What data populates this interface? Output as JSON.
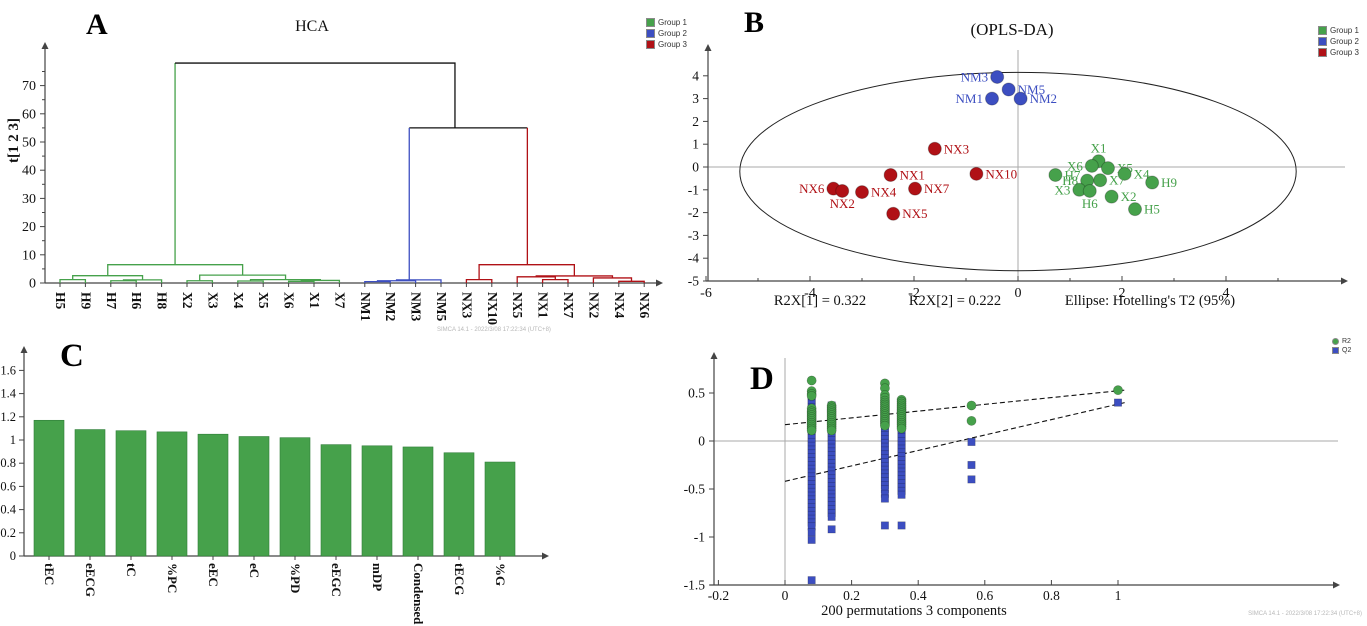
{
  "colors": {
    "green": "#46a14b",
    "blue": "#3c4ec1",
    "red": "#b01116",
    "black": "#111111",
    "axis": "#444444",
    "grid": "#aaaaaa",
    "text": "#111111"
  },
  "watermark_a": "SIMCA 14.1 - 2022/3/08 17:22:34 (UTC+8)",
  "watermark_d": "SIMCA 14.1 - 2022/3/08 17:22:34 (UTC+8)",
  "chart_data": [
    {
      "id": "A",
      "type": "dendrogram",
      "panel_label": "A",
      "title": "HCA",
      "ylabel": "t[1 2 3]",
      "yticks": [
        0,
        10,
        20,
        30,
        40,
        50,
        60,
        70
      ],
      "ylim": [
        0,
        80
      ],
      "leaves": [
        "H5",
        "H9",
        "H7",
        "H6",
        "H8",
        "X2",
        "X3",
        "X4",
        "X5",
        "X6",
        "X1",
        "X7",
        "NM1",
        "NM2",
        "NM3",
        "NM5",
        "NX3",
        "NX10",
        "NX5",
        "NX1",
        "NX7",
        "NX2",
        "NX4",
        "NX6"
      ],
      "legend": [
        {
          "label": "Group 1",
          "color_key": "green"
        },
        {
          "label": "Group 2",
          "color_key": "blue"
        },
        {
          "label": "Group 3",
          "color_key": "red"
        }
      ],
      "segments": [
        {
          "c": "green",
          "pts": [
            [
              1,
              0
            ],
            [
              1,
              1.2
            ],
            [
              2,
              1.2
            ],
            [
              2,
              0
            ]
          ]
        },
        {
          "c": "green",
          "pts": [
            [
              3,
              0
            ],
            [
              3,
              0.8
            ],
            [
              4,
              0.8
            ],
            [
              4,
              0
            ]
          ]
        },
        {
          "c": "green",
          "pts": [
            [
              3.5,
              0.8
            ],
            [
              3.5,
              1.1
            ],
            [
              5,
              1.1
            ],
            [
              5,
              0
            ]
          ]
        },
        {
          "c": "green",
          "pts": [
            [
              1.5,
              1.2
            ],
            [
              1.5,
              2.6
            ],
            [
              4.25,
              2.6
            ],
            [
              4.25,
              1.1
            ]
          ]
        },
        {
          "c": "green",
          "pts": [
            [
              6,
              0
            ],
            [
              6,
              0.8
            ],
            [
              7,
              0.8
            ],
            [
              7,
              0
            ]
          ]
        },
        {
          "c": "green",
          "pts": [
            [
              8,
              0
            ],
            [
              8,
              0.7
            ],
            [
              9,
              0.7
            ],
            [
              9,
              0
            ]
          ]
        },
        {
          "c": "green",
          "pts": [
            [
              10,
              0
            ],
            [
              10,
              0.6
            ],
            [
              11,
              0.6
            ],
            [
              11,
              0
            ]
          ]
        },
        {
          "c": "green",
          "pts": [
            [
              10.5,
              0.6
            ],
            [
              10.5,
              0.9
            ],
            [
              12,
              0.9
            ],
            [
              12,
              0
            ]
          ]
        },
        {
          "c": "green",
          "pts": [
            [
              8.5,
              0.7
            ],
            [
              8.5,
              1.2
            ],
            [
              11.25,
              1.2
            ],
            [
              11.25,
              0.9
            ]
          ]
        },
        {
          "c": "green",
          "pts": [
            [
              6.5,
              0.8
            ],
            [
              6.5,
              2.8
            ],
            [
              9.88,
              2.8
            ],
            [
              9.88,
              1.2
            ]
          ]
        },
        {
          "c": "green",
          "pts": [
            [
              2.88,
              2.6
            ],
            [
              2.88,
              6.5
            ],
            [
              8.19,
              6.5
            ],
            [
              8.19,
              2.8
            ]
          ]
        },
        {
          "c": "green",
          "pts": [
            [
              5.53,
              6.5
            ],
            [
              5.53,
              78
            ]
          ]
        },
        {
          "c": "black",
          "pts": [
            [
              5.53,
              78
            ],
            [
              16.55,
              78
            ],
            [
              16.55,
              55
            ]
          ]
        },
        {
          "c": "black",
          "pts": [
            [
              14.75,
              55
            ],
            [
              19.4,
              55
            ]
          ]
        },
        {
          "c": "blue",
          "pts": [
            [
              13,
              0
            ],
            [
              13,
              0.5
            ],
            [
              14,
              0.5
            ],
            [
              14,
              0
            ]
          ]
        },
        {
          "c": "blue",
          "pts": [
            [
              13.5,
              0.5
            ],
            [
              13.5,
              0.8
            ],
            [
              15,
              0.8
            ],
            [
              15,
              0
            ]
          ]
        },
        {
          "c": "blue",
          "pts": [
            [
              14.25,
              0.8
            ],
            [
              14.25,
              1.1
            ],
            [
              16,
              1.1
            ],
            [
              16,
              0
            ]
          ]
        },
        {
          "c": "blue",
          "pts": [
            [
              14.75,
              1.1
            ],
            [
              14.75,
              55
            ]
          ]
        },
        {
          "c": "red",
          "pts": [
            [
              17,
              0
            ],
            [
              17,
              1.2
            ],
            [
              18,
              1.2
            ],
            [
              18,
              0
            ]
          ]
        },
        {
          "c": "red",
          "pts": [
            [
              20,
              0
            ],
            [
              20,
              1.2
            ],
            [
              21,
              1.2
            ],
            [
              21,
              0
            ]
          ]
        },
        {
          "c": "red",
          "pts": [
            [
              19,
              0
            ],
            [
              19,
              2.2
            ],
            [
              20.5,
              2.2
            ],
            [
              20.5,
              1.2
            ]
          ]
        },
        {
          "c": "red",
          "pts": [
            [
              23,
              0
            ],
            [
              23,
              0.6
            ],
            [
              24,
              0.6
            ],
            [
              24,
              0
            ]
          ]
        },
        {
          "c": "red",
          "pts": [
            [
              22,
              0
            ],
            [
              22,
              1.8
            ],
            [
              23.5,
              1.8
            ],
            [
              23.5,
              0.6
            ]
          ]
        },
        {
          "c": "red",
          "pts": [
            [
              19.75,
              2.2
            ],
            [
              19.75,
              2.5
            ],
            [
              22.75,
              2.5
            ],
            [
              22.75,
              1.8
            ]
          ]
        },
        {
          "c": "red",
          "pts": [
            [
              17.5,
              1.2
            ],
            [
              17.5,
              6.5
            ],
            [
              21.25,
              6.5
            ],
            [
              21.25,
              2.5
            ]
          ]
        },
        {
          "c": "red",
          "pts": [
            [
              19.4,
              6.5
            ],
            [
              19.4,
              55
            ]
          ]
        }
      ]
    },
    {
      "id": "B",
      "type": "scatter",
      "panel_label": "B",
      "title": "(OPLS-DA)",
      "xticks": [
        -6,
        -4,
        -2,
        0,
        2,
        4
      ],
      "yticks": [
        -5,
        -4,
        -3,
        -2,
        -1,
        0,
        1,
        2,
        3,
        4
      ],
      "xlim": [
        -6,
        5.6
      ],
      "ylim": [
        -5,
        4.7
      ],
      "captions": [
        "R2X[1] = 0.322",
        "R2X[2] = 0.222",
        "Ellipse: Hotelling's T2 (95%)"
      ],
      "ellipse": {
        "cx": 0,
        "cy": -0.2,
        "rx": 5.35,
        "ry": 4.35
      },
      "legend": [
        {
          "label": "Group 1",
          "color_key": "green"
        },
        {
          "label": "Group 2",
          "color_key": "blue"
        },
        {
          "label": "Group 3",
          "color_key": "red"
        }
      ],
      "points": [
        {
          "label": "NM3",
          "x": -0.4,
          "y": 3.95,
          "g": "blue",
          "side": "l"
        },
        {
          "label": "NM5",
          "x": -0.18,
          "y": 3.4,
          "g": "blue",
          "side": "r"
        },
        {
          "label": "NM1",
          "x": -0.5,
          "y": 3.0,
          "g": "blue",
          "side": "l"
        },
        {
          "label": "NM2",
          "x": 0.05,
          "y": 3.0,
          "g": "blue",
          "side": "r"
        },
        {
          "label": "NX3",
          "x": -1.6,
          "y": 0.8,
          "g": "red",
          "side": "r"
        },
        {
          "label": "NX1",
          "x": -2.45,
          "y": -0.35,
          "g": "red",
          "side": "r"
        },
        {
          "label": "NX10",
          "x": -0.8,
          "y": -0.3,
          "g": "red",
          "side": "r"
        },
        {
          "label": "NX6",
          "x": -3.55,
          "y": -0.95,
          "g": "red",
          "side": "l"
        },
        {
          "label": "NX2",
          "x": -3.38,
          "y": -1.05,
          "g": "red",
          "side": "b"
        },
        {
          "label": "NX4",
          "x": -3.0,
          "y": -1.1,
          "g": "red",
          "side": "r"
        },
        {
          "label": "NX7",
          "x": -1.98,
          "y": -0.95,
          "g": "red",
          "side": "r"
        },
        {
          "label": "NX5",
          "x": -2.4,
          "y": -2.05,
          "g": "red",
          "side": "r"
        },
        {
          "label": "X1",
          "x": 1.55,
          "y": 0.25,
          "g": "green",
          "side": "t"
        },
        {
          "label": "X6",
          "x": 1.42,
          "y": 0.05,
          "g": "green",
          "side": "l"
        },
        {
          "label": "X5",
          "x": 1.73,
          "y": -0.05,
          "g": "green",
          "side": "r"
        },
        {
          "label": "X4",
          "x": 2.05,
          "y": -0.3,
          "g": "green",
          "side": "r"
        },
        {
          "label": "H7",
          "x": 0.72,
          "y": -0.35,
          "g": "green",
          "side": "r"
        },
        {
          "label": "H8",
          "x": 1.33,
          "y": -0.6,
          "g": "green",
          "side": "l"
        },
        {
          "label": "X7",
          "x": 1.58,
          "y": -0.58,
          "g": "green",
          "side": "r"
        },
        {
          "label": "H9",
          "x": 2.58,
          "y": -0.68,
          "g": "green",
          "side": "r"
        },
        {
          "label": "X3",
          "x": 1.18,
          "y": -1.0,
          "g": "green",
          "side": "l"
        },
        {
          "label": "H6",
          "x": 1.38,
          "y": -1.05,
          "g": "green",
          "side": "b"
        },
        {
          "label": "X2",
          "x": 1.8,
          "y": -1.3,
          "g": "green",
          "side": "r"
        },
        {
          "label": "H5",
          "x": 2.25,
          "y": -1.85,
          "g": "green",
          "side": "r"
        }
      ]
    },
    {
      "id": "C",
      "type": "bar",
      "panel_label": "C",
      "categories": [
        "tEC",
        "eECG",
        "tC",
        "%PC",
        "eEC",
        "eC",
        "%PD",
        "eEGC",
        "mDP",
        "Condensed",
        "tECG",
        "%G"
      ],
      "values": [
        1.17,
        1.09,
        1.08,
        1.07,
        1.05,
        1.03,
        1.02,
        0.96,
        0.95,
        0.94,
        0.89,
        0.81
      ],
      "yticks": [
        0,
        0.2,
        0.4,
        0.6,
        0.8,
        1,
        1.2,
        1.4,
        1.6
      ],
      "ylim": [
        0,
        1.75
      ],
      "bar_color_key": "green"
    },
    {
      "id": "D",
      "type": "permutation-scatter",
      "panel_label": "D",
      "xlabel": "200 permutations 3 components",
      "xticks": [
        -0.2,
        0,
        0.2,
        0.4,
        0.6,
        0.8,
        1
      ],
      "yticks": [
        -1.5,
        -1,
        -0.5,
        0,
        0.5
      ],
      "xlim": [
        -0.25,
        1.65
      ],
      "ylim": [
        -1.55,
        0.95
      ],
      "legend": [
        {
          "label": "R2",
          "color_key": "green",
          "shape": "circle"
        },
        {
          "label": "Q2",
          "color_key": "blue",
          "shape": "square"
        }
      ],
      "regression_lines": [
        {
          "name": "R2",
          "x1": 0,
          "y1": 0.17,
          "x2": 1.02,
          "y2": 0.53
        },
        {
          "name": "Q2",
          "x1": 0,
          "y1": -0.42,
          "x2": 1.02,
          "y2": 0.4
        }
      ],
      "r2_columns": [
        {
          "x": 0.08,
          "ys": [
            0.63,
            0.52,
            0.49,
            0.47,
            0.34,
            0.31,
            0.29,
            0.27,
            0.25,
            0.23,
            0.21,
            0.19,
            0.17,
            0.15,
            0.13,
            0.11
          ]
        },
        {
          "x": 0.14,
          "ys": [
            0.37,
            0.35,
            0.33,
            0.31,
            0.29,
            0.27,
            0.25,
            0.23,
            0.21,
            0.19,
            0.17,
            0.15,
            0.13,
            0.11
          ]
        },
        {
          "x": 0.3,
          "ys": [
            0.6,
            0.55,
            0.48,
            0.45,
            0.42,
            0.4,
            0.38,
            0.36,
            0.34,
            0.32,
            0.3,
            0.28,
            0.26,
            0.24,
            0.22,
            0.2,
            0.18,
            0.16
          ]
        },
        {
          "x": 0.35,
          "ys": [
            0.43,
            0.41,
            0.39,
            0.37,
            0.35,
            0.33,
            0.31,
            0.29,
            0.27,
            0.25,
            0.23,
            0.21,
            0.19,
            0.17,
            0.15,
            0.13
          ]
        },
        {
          "x": 0.56,
          "ys": [
            0.37,
            0.21
          ]
        },
        {
          "x": 1.0,
          "ys": [
            0.53
          ]
        }
      ],
      "q2_columns": [
        {
          "x": 0.08,
          "ys": [
            0.47,
            0.43,
            0.39,
            0.35,
            0.31,
            0.27,
            0.23,
            0.19,
            0.15,
            0.11,
            0.07,
            0.03,
            -0.01,
            -0.05,
            -0.09,
            -0.13,
            -0.17,
            -0.21,
            -0.25,
            -0.29,
            -0.33,
            -0.37,
            -0.41,
            -0.45,
            -0.49,
            -0.53,
            -0.57,
            -0.61,
            -0.65,
            -0.69,
            -0.73,
            -0.77,
            -0.81,
            -0.85,
            -0.89,
            -0.95,
            -1.03,
            -1.45
          ]
        },
        {
          "x": 0.14,
          "ys": [
            0.37,
            0.33,
            0.29,
            0.25,
            0.21,
            0.17,
            0.13,
            0.09,
            0.05,
            0.01,
            -0.03,
            -0.07,
            -0.11,
            -0.15,
            -0.19,
            -0.23,
            -0.27,
            -0.31,
            -0.35,
            -0.39,
            -0.43,
            -0.47,
            -0.51,
            -0.55,
            -0.59,
            -0.63,
            -0.67,
            -0.71,
            -0.75,
            -0.79,
            -0.92
          ]
        },
        {
          "x": 0.3,
          "ys": [
            0.42,
            0.38,
            0.34,
            0.3,
            0.26,
            0.22,
            0.18,
            0.14,
            0.1,
            0.06,
            0.02,
            -0.02,
            -0.06,
            -0.1,
            -0.14,
            -0.18,
            -0.22,
            -0.26,
            -0.3,
            -0.34,
            -0.38,
            -0.42,
            -0.46,
            -0.5,
            -0.55,
            -0.6,
            -0.88
          ]
        },
        {
          "x": 0.35,
          "ys": [
            0.12,
            0.08,
            0.04,
            0.0,
            -0.04,
            -0.08,
            -0.12,
            -0.16,
            -0.2,
            -0.24,
            -0.28,
            -0.32,
            -0.36,
            -0.4,
            -0.44,
            -0.48,
            -0.52,
            -0.56,
            -0.88
          ]
        },
        {
          "x": 0.56,
          "ys": [
            -0.01,
            -0.25,
            -0.4
          ]
        },
        {
          "x": 1.0,
          "ys": [
            0.4
          ]
        }
      ]
    }
  ]
}
